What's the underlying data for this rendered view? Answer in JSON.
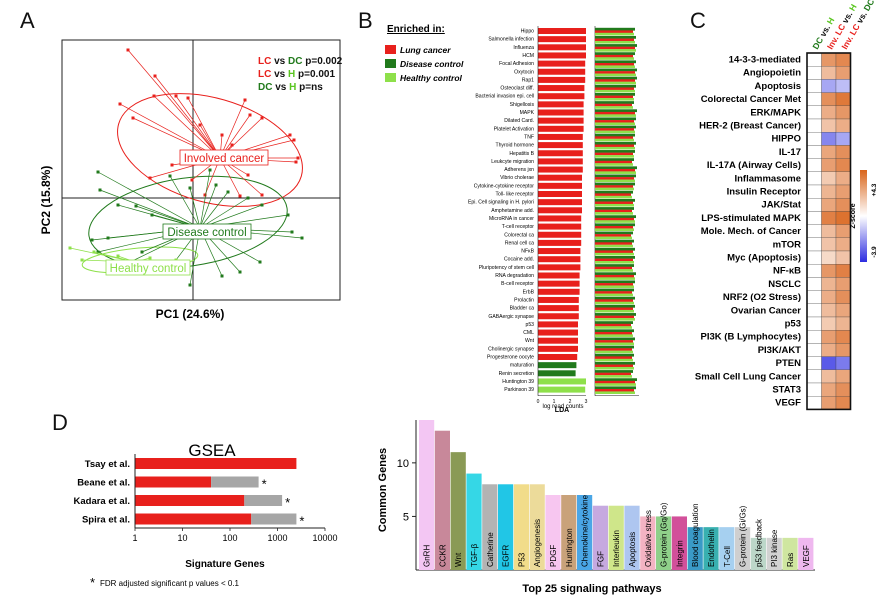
{
  "panel_labels": {
    "a": "A",
    "b": "B",
    "c": "C",
    "d": "D"
  },
  "colors": {
    "red": "#e8201c",
    "dark_green": "#217a1c",
    "light_green": "#8ee04a",
    "gray": "#a6a6a6",
    "heat_orange": "#d9651a",
    "heat_blue": "#2d2de0"
  },
  "panel_a": {
    "xlabel": "PC1 (24.6%)",
    "ylabel": "PC2 (15.8%)",
    "stats": [
      {
        "g1": "LC",
        "vs": "vs",
        "g2": "DC",
        "p": "p=0.002",
        "c1": "#e8201c",
        "c2": "#217a1c"
      },
      {
        "g1": "LC",
        "vs": "vs",
        "g2": "H",
        "p": "p=0.001",
        "c1": "#e8201c",
        "c2": "#5ac520"
      },
      {
        "g1": "DC",
        "vs": "vs",
        "g2": "H",
        "p": "p=ns",
        "c1": "#217a1c",
        "c2": "#5ac520"
      }
    ],
    "group_labels": {
      "lc": "Involved cancer",
      "dc": "Disease control",
      "hc": "Healthy control"
    }
  },
  "panel_b": {
    "legend_title": "Enriched in:",
    "legend": [
      "Lung cancer",
      "Disease control",
      "Healthy control"
    ],
    "lda_label": "LDA",
    "lda_ticks": [
      "0",
      "1",
      "2",
      "3"
    ],
    "reads_label": "log read counts",
    "pathways": [
      "Hippo",
      "Salmonella infection",
      "Influenza",
      "HCM",
      "Focal Adhesion",
      "Oxytocin",
      "Rap1",
      "Osteoclast diff.",
      "Bacterial invasion epi. cell",
      "Shigellosis",
      "MAPK",
      "Dilated Card.",
      "Platelet Activation",
      "TNF",
      "Thyroid hormone",
      "Hepatitis B",
      "Leukcyte migration",
      "Adherens jxn",
      "Vibrio cholerae",
      "Cytokine-cytokine receptor",
      "Toll- like receptor",
      "Epi. Cell signaling in H. pylori",
      "Amphetamine add.",
      "MicroRNA in cancer",
      "T-cell receptor",
      "Colorectal ca",
      "Renal cell ca",
      "NFκB",
      "Cocaine add.",
      "Pluripotency of stem cell",
      "RNA degradation",
      "B-cell receptor",
      "ErbB",
      "Prolactin",
      "Bladder ca",
      "GABAergic synapse",
      "p53",
      "CML",
      "Wnt",
      "Cholinergic synapse",
      "Progesterone oocyte",
      "maturation",
      "Renin secretion",
      "Huntington 39",
      "Parkinson 39"
    ]
  },
  "panel_c": {
    "col_headers": [
      {
        "parts": [
          {
            "t": "DC",
            "c": "#217a1c"
          },
          {
            "t": " vs. ",
            "c": "#111111"
          },
          {
            "t": "H",
            "c": "#5ac520"
          }
        ]
      },
      {
        "parts": [
          {
            "t": "Inv. LC",
            "c": "#e8201c"
          },
          {
            "t": " vs. ",
            "c": "#111111"
          },
          {
            "t": "H",
            "c": "#5ac520"
          }
        ]
      },
      {
        "parts": [
          {
            "t": "Inv. LC",
            "c": "#e8201c"
          },
          {
            "t": " vs. ",
            "c": "#111111"
          },
          {
            "t": "DC",
            "c": "#217a1c"
          }
        ]
      }
    ],
    "rows": [
      "14-3-3-mediated",
      "Angiopoietin",
      "Apoptosis",
      "Colorectal Cancer Met",
      "ERK/MAPK",
      "HER-2 (Breast Cancer)",
      "HIPPO",
      "IL-17",
      "IL-17A (Airway Cells)",
      "Inflammasome",
      "Insulin Receptor",
      "JAK/Stat",
      "LPS-stimulated MAPK",
      "Mole. Mech. of Cancer",
      "mTOR",
      "Myc (Apoptosis)",
      "NF-κB",
      "NSCLC",
      "NRF2 (O2 Stress)",
      "Ovarian Cancer",
      "p53",
      "PI3K (B Lymphocytes)",
      "PI3K/AKT",
      "PTEN",
      "Small Cell Lung Cancer",
      "STAT3",
      "VEGF"
    ],
    "zscore_values": [
      [
        0.0,
        2.8,
        3.2
      ],
      [
        0.0,
        1.8,
        2.6
      ],
      [
        0.0,
        -1.6,
        -1.2
      ],
      [
        0.0,
        3.0,
        3.6
      ],
      [
        0.0,
        2.2,
        2.8
      ],
      [
        0.0,
        1.6,
        2.2
      ],
      [
        0.0,
        -2.2,
        -1.6
      ],
      [
        0.0,
        2.4,
        3.0
      ],
      [
        0.0,
        2.6,
        3.2
      ],
      [
        0.0,
        1.4,
        2.2
      ],
      [
        0.0,
        2.0,
        2.6
      ],
      [
        0.0,
        2.4,
        3.0
      ],
      [
        0.0,
        3.4,
        3.8
      ],
      [
        0.0,
        1.8,
        2.6
      ],
      [
        0.0,
        1.6,
        2.2
      ],
      [
        0.0,
        1.0,
        1.6
      ],
      [
        0.0,
        2.8,
        3.4
      ],
      [
        0.0,
        2.0,
        2.6
      ],
      [
        0.0,
        2.2,
        3.0
      ],
      [
        0.0,
        1.8,
        2.4
      ],
      [
        0.0,
        1.4,
        2.0
      ],
      [
        0.0,
        2.6,
        3.2
      ],
      [
        0.0,
        2.2,
        2.8
      ],
      [
        0.0,
        -3.0,
        -2.4
      ],
      [
        0.0,
        1.8,
        2.4
      ],
      [
        0.0,
        2.4,
        3.0
      ],
      [
        0.0,
        2.6,
        3.2
      ]
    ],
    "scale": {
      "max": "+4.3",
      "min": "-3.9",
      "label": "Z-score"
    }
  },
  "panel_d_gsea": {
    "title": "GSEA",
    "xlabel": "Signature Genes",
    "xticks": [
      "1",
      "10",
      "100",
      "1000",
      "10000"
    ],
    "studies": [
      "Tsay et al.",
      "Beane et al.",
      "Kadara et al.",
      "Spira et al."
    ],
    "sig_marks": [
      "",
      "*",
      "*",
      "*"
    ],
    "footnote_star": "*",
    "footnote": "FDR adjusted significant p values < 0.1"
  },
  "panel_d_top25": {
    "xlabel": "Top 25 signaling pathways",
    "ylabel": "Common Genes",
    "yticks": [
      "5",
      "10"
    ]
  },
  "chart_data": [
    {
      "type": "bar",
      "title": "",
      "xlabel": "LDA",
      "categories": [
        "Hippo",
        "Salmonella infection",
        "Influenza",
        "HCM",
        "Focal Adhesion",
        "Oxytocin",
        "Rap1",
        "Osteoclast diff.",
        "Bacterial invasion epi. cell",
        "Shigellosis",
        "MAPK",
        "Dilated Card.",
        "Platelet Activation",
        "TNF",
        "Thyroid hormone",
        "Hepatitis B",
        "Leukcyte migration",
        "Adherens jxn",
        "Vibrio cholerae",
        "Cytokine-cytokine receptor",
        "Toll- like receptor",
        "Epi. Cell signaling in H. pylori",
        "Amphetamine add.",
        "MicroRNA in cancer",
        "T-cell receptor",
        "Colorectal ca",
        "Renal cell ca",
        "NFκB",
        "Cocaine add.",
        "Pluripotency of stem cell",
        "RNA degradation",
        "B-cell receptor",
        "ErbB",
        "Prolactin",
        "Bladder ca",
        "GABAergic synapse",
        "p53",
        "CML",
        "Wnt",
        "Cholinergic synapse",
        "Progesterone oocyte",
        "maturation",
        "Renin secretion",
        "Huntington 39",
        "Parkinson 39"
      ],
      "values": [
        3.0,
        3.0,
        3.0,
        3.0,
        2.95,
        2.95,
        2.95,
        2.9,
        2.9,
        2.85,
        2.85,
        2.85,
        2.85,
        2.8,
        2.8,
        2.8,
        2.8,
        2.8,
        2.75,
        2.75,
        2.75,
        2.75,
        2.75,
        2.7,
        2.7,
        2.7,
        2.7,
        2.65,
        2.65,
        2.65,
        2.6,
        2.6,
        2.6,
        2.55,
        2.55,
        2.55,
        2.5,
        2.5,
        2.5,
        2.5,
        2.45,
        2.4,
        2.35,
        3.0,
        2.95
      ],
      "groups": [
        "LC",
        "LC",
        "LC",
        "LC",
        "LC",
        "LC",
        "LC",
        "LC",
        "LC",
        "LC",
        "LC",
        "LC",
        "LC",
        "LC",
        "LC",
        "LC",
        "LC",
        "LC",
        "LC",
        "LC",
        "LC",
        "LC",
        "LC",
        "LC",
        "LC",
        "LC",
        "LC",
        "LC",
        "LC",
        "LC",
        "LC",
        "LC",
        "LC",
        "LC",
        "LC",
        "LC",
        "LC",
        "LC",
        "LC",
        "LC",
        "LC",
        "DC",
        "DC",
        "H",
        "H"
      ],
      "xlim": [
        0,
        3
      ]
    },
    {
      "type": "bar",
      "title": "GSEA",
      "xlabel": "Signature Genes",
      "x_scale": "log",
      "xlim": [
        1,
        10000
      ],
      "categories": [
        "Tsay et al.",
        "Beane et al.",
        "Kadara et al.",
        "Spira et al."
      ],
      "series": [
        {
          "name": "",
          "values": [
            2500,
            40,
            200,
            280
          ]
        },
        {
          "name": "",
          "values": [
            0,
            400,
            1250,
            2500
          ]
        }
      ]
    },
    {
      "type": "bar",
      "title": "",
      "xlabel": "Top 25 signaling pathways",
      "ylabel": "Common Genes",
      "ylim": [
        0,
        14
      ],
      "categories": [
        "GnRH",
        "CCKR",
        "Wnt",
        "TGF-β",
        "Catherine",
        "EGFR",
        "P53",
        "Angiogenesis",
        "PDGF",
        "Huntington",
        "Chemokine/cytokine",
        "FGF",
        "Interleukin",
        "Apoptosis",
        "Oxidative stress",
        "G-protein (Gq/Go)",
        "Integrin",
        "Blood coagulation",
        "Endothelin",
        "T-Cell",
        "G-protein (Gi/Gs)",
        "p53 feedback",
        "PI3 kinase",
        "Ras",
        "VEGF"
      ],
      "values": [
        14,
        13,
        11,
        9,
        8,
        8,
        8,
        8,
        7,
        7,
        7,
        6,
        6,
        6,
        5,
        5,
        5,
        4,
        4,
        4,
        4,
        3,
        3,
        3,
        3
      ]
    }
  ]
}
